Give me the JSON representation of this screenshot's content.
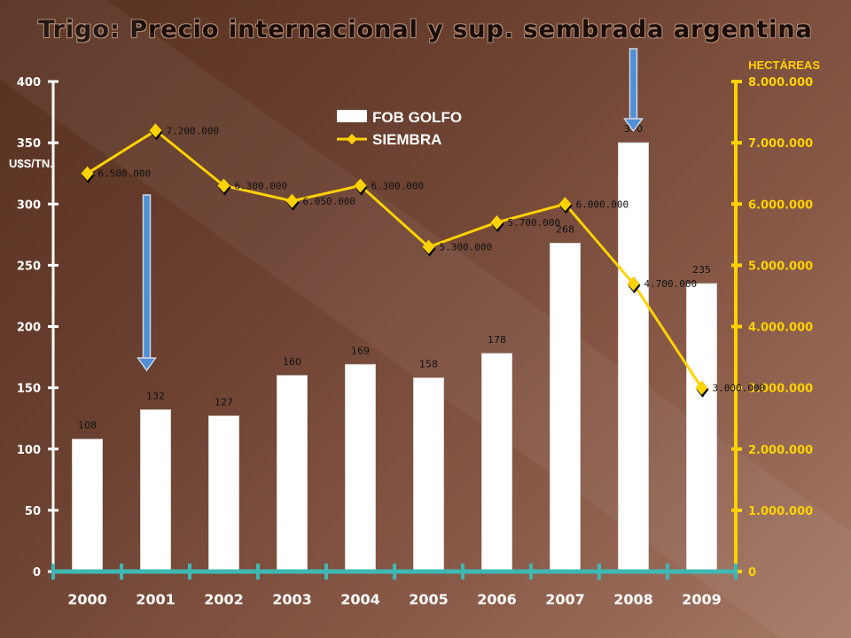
{
  "title": "Trigo: Precio internacional  y sup. sembrada argentina",
  "colors": {
    "bar": "#ffffff",
    "line": "#ffd200",
    "left_axis": "#ffffff",
    "right_axis": "#ffd200",
    "x_axis": "#3fb8b4",
    "arrow": "#4f8fd6"
  },
  "chart_data": {
    "type": "bar",
    "title": "Trigo: Precio internacional  y sup. sembrada argentina",
    "categories": [
      "2000",
      "2001",
      "2002",
      "2003",
      "2004",
      "2005",
      "2006",
      "2007",
      "2008",
      "2009"
    ],
    "series": [
      {
        "name": "FOB GOLFO",
        "type": "bar",
        "axis": "left",
        "values": [
          108,
          132,
          127,
          160,
          169,
          158,
          178,
          268,
          350,
          235
        ],
        "labels": [
          "108",
          "132",
          "127",
          "160",
          "169",
          "158",
          "178",
          "268",
          "350",
          "235"
        ]
      },
      {
        "name": "SIEMBRA",
        "type": "line",
        "axis": "right",
        "values": [
          6500000,
          7200000,
          6300000,
          6050000,
          6300000,
          5300000,
          5700000,
          6000000,
          4700000,
          3000000
        ],
        "labels": [
          "6.500.000",
          "7.200.000",
          "6.300.000",
          "6.050.000",
          "6.300.000",
          "5.300.000",
          "5.700.000",
          "6.000.000",
          "4.700.000",
          "3.000.000"
        ]
      }
    ],
    "ylabel": "U$S/TN.",
    "ylabel_right": "HECTÁREAS",
    "ylim": [
      0,
      400
    ],
    "ylim_right": [
      0,
      8000000
    ],
    "yticks": [
      "0",
      "50",
      "100",
      "150",
      "200",
      "250",
      "300",
      "350",
      "400"
    ],
    "yticks_right": [
      "0",
      "1.000.000",
      "2.000.000",
      "3.000.000",
      "4.000.000",
      "5.000.000",
      "6.000.000",
      "7.000.000",
      "8.000.000"
    ],
    "legend": {
      "position": "top-center",
      "entries": [
        "FOB GOLFO",
        "SIEMBRA"
      ]
    },
    "grid": false,
    "annotations": [
      {
        "shape": "down-arrow",
        "category": "2001"
      },
      {
        "shape": "down-arrow",
        "category": "2008"
      }
    ]
  }
}
